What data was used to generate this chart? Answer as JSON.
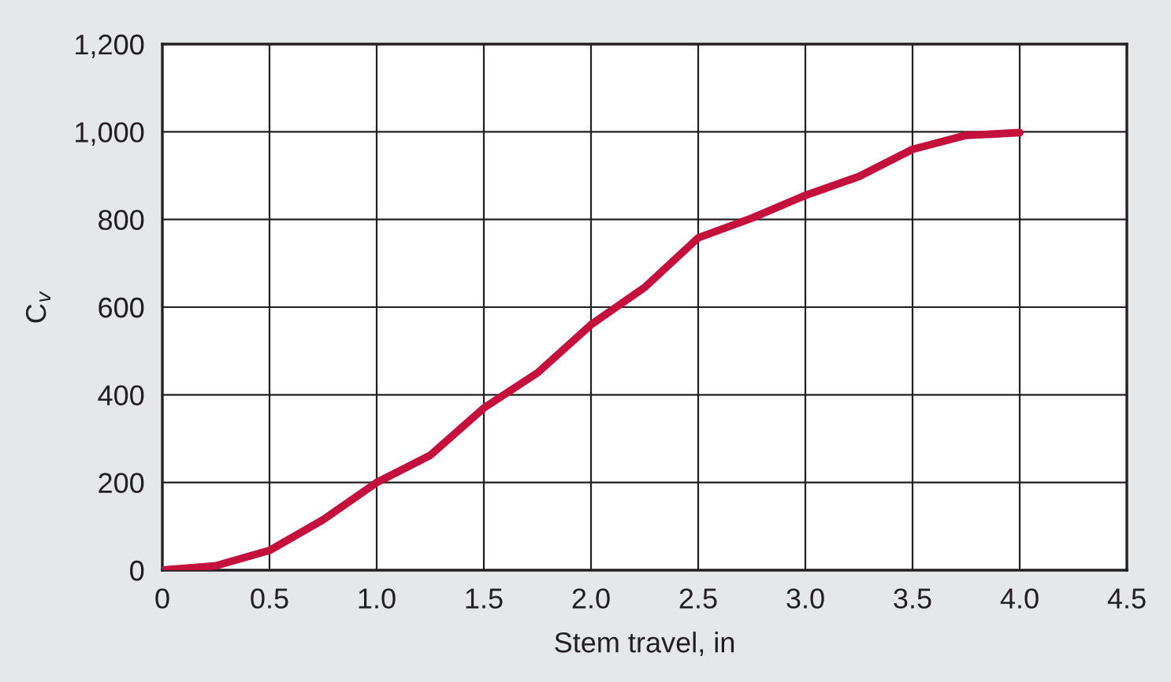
{
  "chart_data": {
    "type": "line",
    "xlabel": "Stem travel, in",
    "ylabel": "C$_{v}$",
    "x": [
      0,
      0.25,
      0.5,
      0.75,
      1.0,
      1.25,
      1.5,
      1.75,
      2.0,
      2.25,
      2.5,
      2.75,
      3.0,
      3.25,
      3.5,
      3.75,
      4.0
    ],
    "series": [
      {
        "color": "#c3103c",
        "values": [
          0,
          10,
          45,
          115,
          200,
          262,
          370,
          450,
          560,
          645,
          758,
          803,
          855,
          898,
          960,
          992,
          998
        ]
      }
    ],
    "xlim": [
      0,
      4.5
    ],
    "xticks": [
      {
        "value": 0,
        "label": "0"
      },
      {
        "value": 0.5,
        "label": "0.5"
      },
      {
        "value": 1.0,
        "label": "1.0"
      },
      {
        "value": 1.5,
        "label": "1.5"
      },
      {
        "value": 2.0,
        "label": "2.0"
      },
      {
        "value": 2.5,
        "label": "2.5"
      },
      {
        "value": 3.0,
        "label": "3.0"
      },
      {
        "value": 3.5,
        "label": "3.5"
      },
      {
        "value": 4.0,
        "label": "4.0"
      },
      {
        "value": 4.5,
        "label": "4.5"
      }
    ],
    "ylim": [
      0,
      1200
    ],
    "yticks": [
      0,
      200,
      400,
      600,
      800,
      {
        "value": 1000,
        "label": "1,000"
      },
      {
        "value": 1200,
        "label": "1,200"
      }
    ],
    "grid": true,
    "marker": "none",
    "line_style": "solid"
  }
}
